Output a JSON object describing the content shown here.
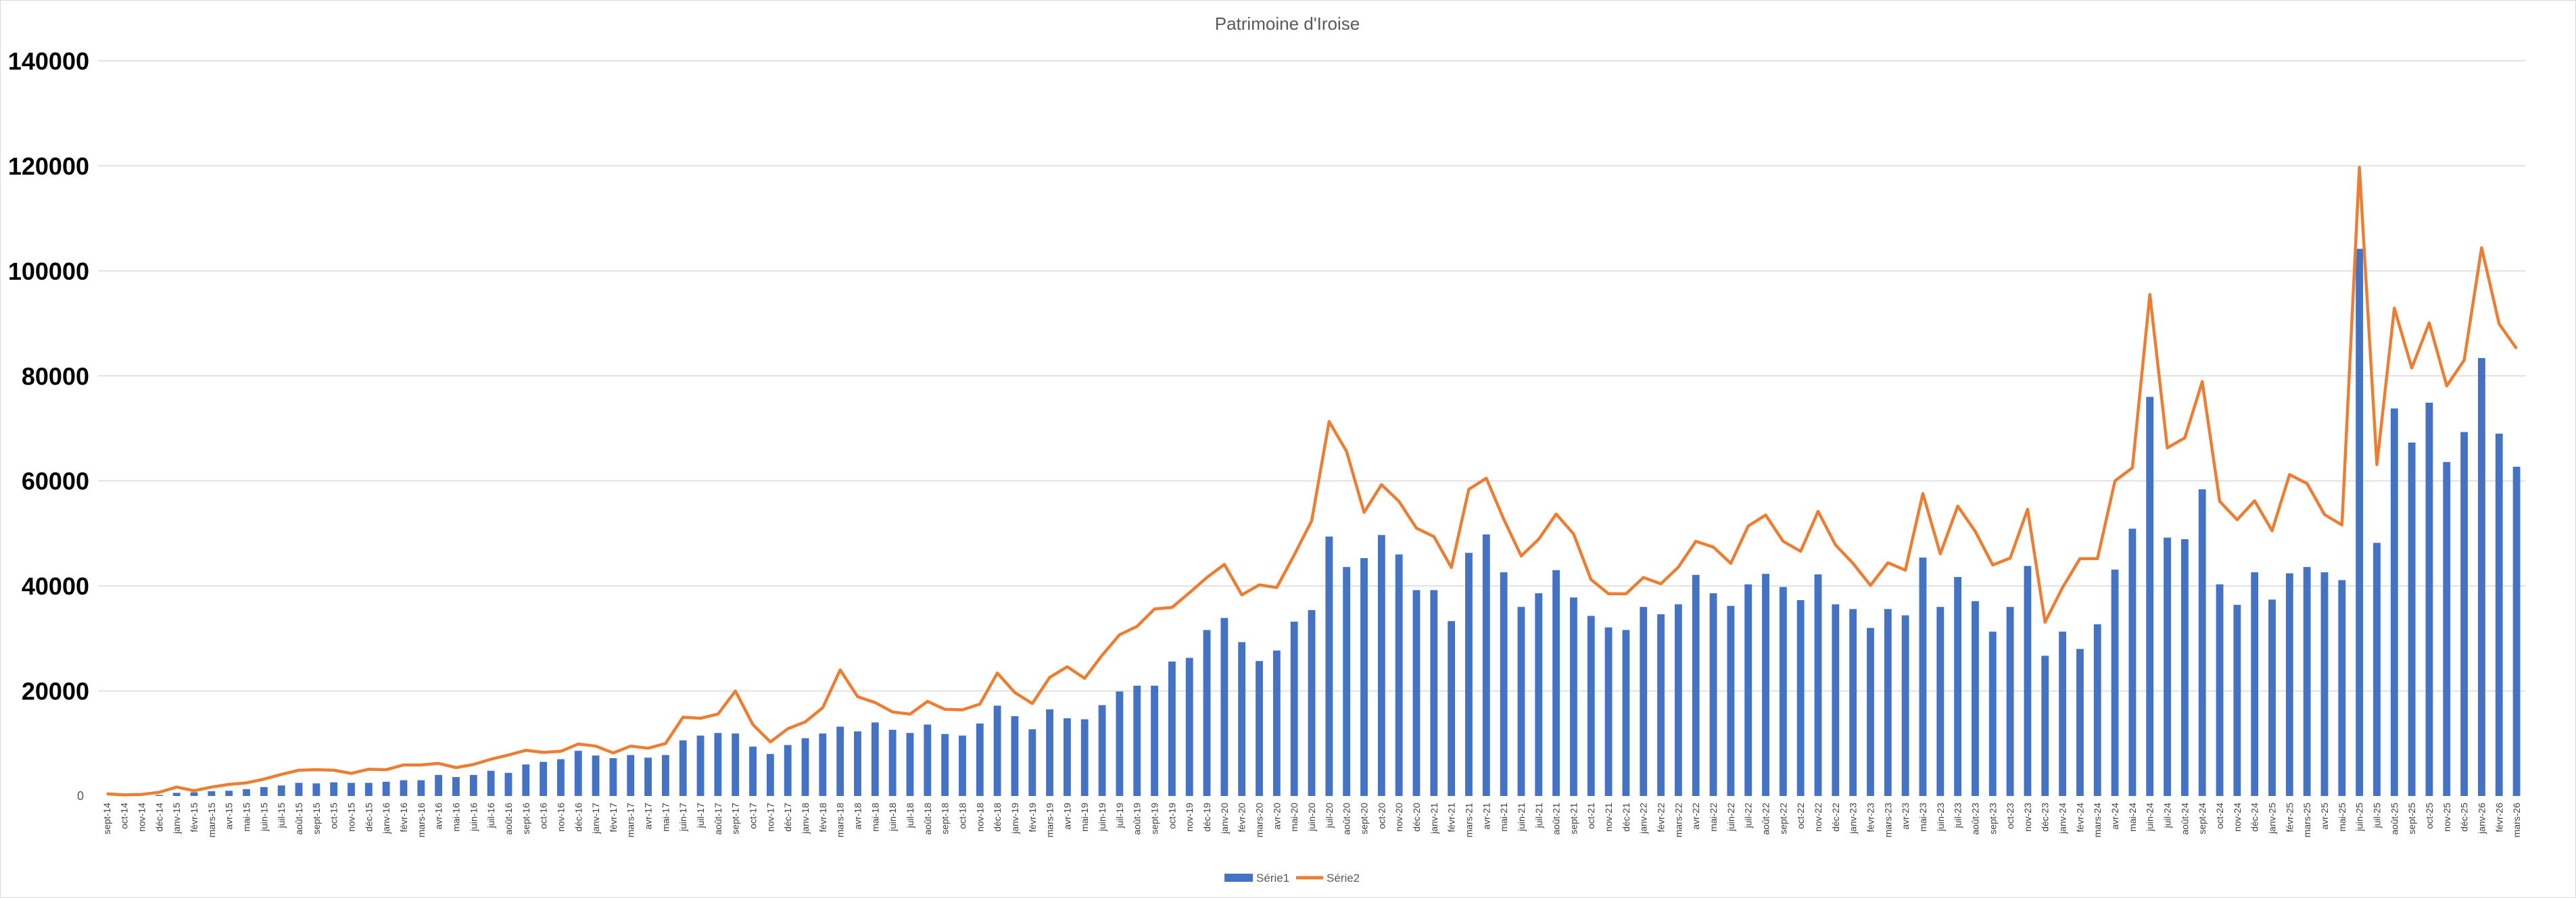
{
  "chart_data": {
    "type": "bar+line",
    "title": "Patrimoine d'Iroise",
    "xlabel": "",
    "ylabel": "",
    "ylim": [
      0,
      140000
    ],
    "yticks": [
      "0",
      "20000",
      "40000",
      "60000",
      "80000",
      "100000",
      "120000",
      "140000"
    ],
    "grid": true,
    "legend_position": "bottom",
    "categories": [
      "sept-14",
      "oct-14",
      "nov-14",
      "déc-14",
      "janv-15",
      "févr-15",
      "mars-15",
      "avr-15",
      "mai-15",
      "juin-15",
      "juil-15",
      "août-15",
      "sept-15",
      "oct-15",
      "nov-15",
      "déc-15",
      "janv-16",
      "févr-16",
      "mars-16",
      "avr-16",
      "mai-16",
      "juin-16",
      "juil-16",
      "août-16",
      "sept-16",
      "oct-16",
      "nov-16",
      "déc-16",
      "janv-17",
      "févr-17",
      "mars-17",
      "avr-17",
      "mai-17",
      "juin-17",
      "juil-17",
      "août-17",
      "sept-17",
      "oct-17",
      "nov-17",
      "déc-17",
      "janv-18",
      "févr-18",
      "mars-18",
      "avr-18",
      "mai-18",
      "juin-18",
      "juil-18",
      "août-18",
      "sept-18",
      "oct-18",
      "nov-18",
      "déc-18",
      "janv-19",
      "févr-19",
      "mars-19",
      "avr-19",
      "mai-19",
      "juin-19",
      "juil-19",
      "août-19",
      "sept-19",
      "oct-19",
      "nov-19",
      "déc-19",
      "janv-20",
      "févr-20",
      "mars-20",
      "avr-20",
      "mai-20",
      "juin-20",
      "juil-20",
      "août-20",
      "sept-20",
      "oct-20",
      "nov-20",
      "déc-20",
      "janv-21",
      "févr-21",
      "mars-21",
      "avr-21",
      "mai-21",
      "juin-21",
      "juil-21",
      "août-21",
      "sept-21",
      "oct-21",
      "nov-21",
      "déc-21",
      "janv-22",
      "févr-22",
      "mars-22",
      "avr-22",
      "mai-22",
      "juin-22",
      "juil-22",
      "août-22",
      "sept-22",
      "oct-22",
      "nov-22",
      "déc-22",
      "janv-23",
      "févr-23",
      "mars-23",
      "avr-23",
      "mai-23",
      "juin-23",
      "juil-23",
      "août-23",
      "sept-23",
      "oct-23",
      "nov-23",
      "déc-23",
      "janv-24",
      "févr-24",
      "mars-24",
      "avr-24",
      "mai-24",
      "juin-24",
      "juil-24",
      "août-24",
      "sept-24",
      "oct-24",
      "nov-24",
      "déc-24",
      "janv-25",
      "févr-25",
      "mars-25",
      "avr-25",
      "mai-25",
      "juin-25",
      "juil-25",
      "août-25",
      "sept-25",
      "oct-25",
      "nov-25",
      "déc-25",
      "janv-26",
      "févr-26",
      "mars-26"
    ],
    "series": [
      {
        "name": "Série1",
        "type": "bar",
        "color": "#4472C4",
        "values": [
          0,
          0,
          0,
          200,
          600,
          700,
          900,
          1000,
          1300,
          1700,
          2000,
          2500,
          2400,
          2600,
          2500,
          2500,
          2700,
          3000,
          3000,
          4000,
          3600,
          4000,
          4800,
          4400,
          6000,
          6500,
          7000,
          8600,
          7700,
          7200,
          7800,
          7300,
          7800,
          10600,
          11500,
          12000,
          11900,
          9400,
          8000,
          9700,
          11000,
          11900,
          13200,
          12300,
          14000,
          12600,
          12000,
          13600,
          11800,
          11500,
          13800,
          17200,
          15200,
          12700,
          16500,
          14800,
          14600,
          17300,
          19900,
          21000,
          21000,
          25600,
          26300,
          31600,
          33900,
          29300,
          25700,
          27700,
          33200,
          35400,
          49400,
          43600,
          45300,
          49700,
          46000,
          39200,
          39200,
          33300,
          46300,
          49800,
          42600,
          36000,
          38600,
          43000,
          37800,
          34300,
          32100,
          31600,
          36000,
          34600,
          36500,
          42100,
          38600,
          36200,
          40300,
          42300,
          39800,
          37300,
          42200,
          36500,
          35600,
          32000,
          35600,
          34400,
          45400,
          36000,
          41700,
          37100,
          31300,
          36000,
          43800,
          26700,
          31300,
          28000,
          32700,
          43100,
          50900,
          76000,
          49200,
          48900,
          58400,
          40300,
          36400,
          42600,
          37400,
          42400,
          43600,
          42600,
          41100,
          104200,
          48200,
          73800,
          67300,
          74900,
          63600,
          69300,
          83400,
          69000,
          62700
        ]
      },
      {
        "name": "Série2",
        "type": "line",
        "color": "#ED7D31",
        "values": [
          400,
          200,
          300,
          700,
          1700,
          1000,
          1700,
          2200,
          2500,
          3200,
          4100,
          4900,
          5000,
          4900,
          4300,
          5100,
          5000,
          5900,
          5900,
          6200,
          5400,
          6000,
          7000,
          7800,
          8700,
          8300,
          8500,
          9900,
          9500,
          8200,
          9500,
          9100,
          10000,
          15000,
          14800,
          15600,
          20000,
          13600,
          10300,
          12800,
          14100,
          16800,
          24000,
          18900,
          17800,
          16000,
          15600,
          18000,
          16500,
          16400,
          17500,
          23400,
          19700,
          17600,
          22600,
          24600,
          22400,
          26800,
          30700,
          32300,
          35600,
          35900,
          38700,
          41600,
          44100,
          38300,
          40200,
          39700,
          45900,
          52400,
          71300,
          65600,
          54000,
          59300,
          56100,
          51000,
          49400,
          43500,
          58400,
          60500,
          52700,
          45700,
          48900,
          53700,
          49900,
          41200,
          38500,
          38500,
          41600,
          40400,
          43600,
          48500,
          47400,
          44300,
          51400,
          53500,
          48500,
          46600,
          54200,
          47800,
          44300,
          40100,
          44400,
          43000,
          57600,
          46100,
          55200,
          50400,
          44000,
          45300,
          54600,
          33100,
          39700,
          45200,
          45200,
          60000,
          62500,
          95500,
          66300,
          68200,
          78900,
          56100,
          52600,
          56200,
          50500,
          61200,
          59500,
          53600,
          51600,
          119700,
          63100,
          92900,
          81500,
          90100,
          78100,
          83000,
          104400,
          89900,
          85200
        ]
      }
    ]
  }
}
